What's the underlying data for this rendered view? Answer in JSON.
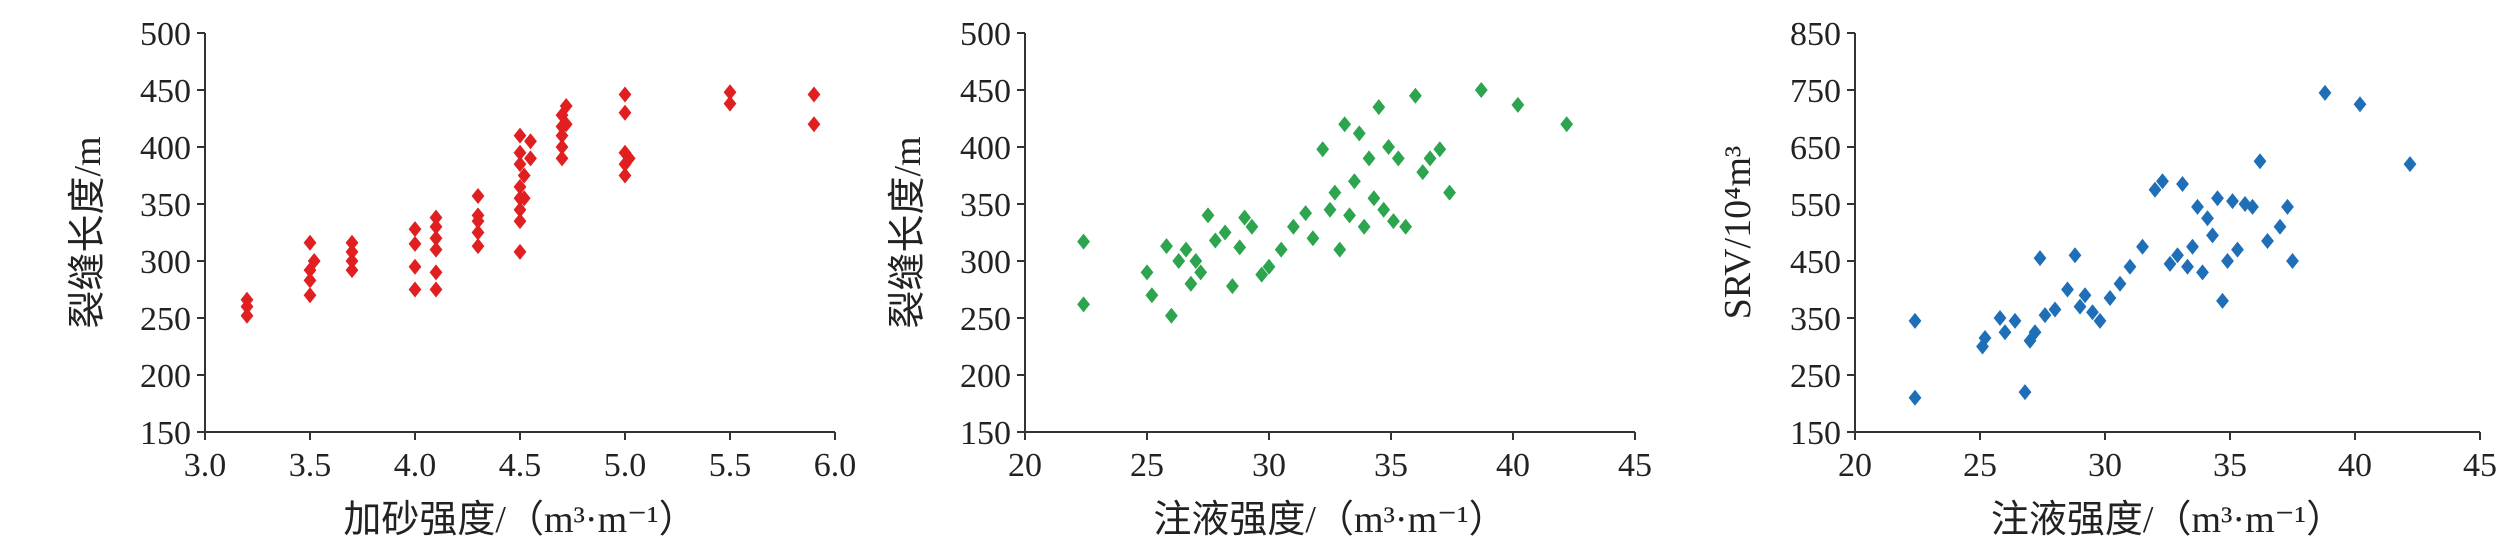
{
  "chart_data": [
    {
      "type": "scatter",
      "title": "",
      "xlabel": "加砂强度/（m³·m⁻¹）",
      "ylabel": "裂缝长度/m",
      "xlim": [
        3.0,
        6.0
      ],
      "ylim": [
        150,
        500
      ],
      "xticks": [
        "3.0",
        "3.5",
        "4.0",
        "4.5",
        "5.0",
        "5.5",
        "6.0"
      ],
      "yticks": [
        "150",
        "200",
        "250",
        "300",
        "350",
        "400",
        "450",
        "500"
      ],
      "grid": false,
      "marker": "diamond",
      "color": "#e02020",
      "x": [
        3.2,
        3.2,
        3.2,
        3.5,
        3.5,
        3.5,
        3.5,
        3.52,
        3.7,
        3.7,
        3.7,
        3.7,
        4.0,
        4.0,
        4.0,
        4.0,
        4.1,
        4.1,
        4.1,
        4.1,
        4.1,
        4.1,
        4.3,
        4.3,
        4.3,
        4.3,
        4.3,
        4.5,
        4.5,
        4.5,
        4.5,
        4.5,
        4.5,
        4.5,
        4.5,
        4.52,
        4.52,
        4.55,
        4.55,
        4.7,
        4.7,
        4.7,
        4.7,
        4.7,
        4.72,
        4.72,
        5.0,
        5.0,
        5.0,
        5.0,
        5.0,
        5.02,
        5.5,
        5.5,
        5.9,
        5.9
      ],
      "y": [
        252,
        260,
        266,
        270,
        283,
        292,
        316,
        300,
        292,
        300,
        308,
        316,
        275,
        295,
        315,
        328,
        275,
        290,
        310,
        320,
        330,
        338,
        313,
        325,
        335,
        340,
        357,
        308,
        335,
        345,
        355,
        365,
        385,
        395,
        410,
        355,
        375,
        390,
        405,
        390,
        400,
        410,
        418,
        428,
        436,
        420,
        375,
        385,
        395,
        430,
        446,
        390,
        438,
        448,
        420,
        446
      ]
    },
    {
      "type": "scatter",
      "title": "",
      "xlabel": "注液强度/（m³·m⁻¹）",
      "ylabel": "裂缝长度/m",
      "xlim": [
        20,
        45
      ],
      "ylim": [
        150,
        500
      ],
      "xticks": [
        "20",
        "25",
        "30",
        "35",
        "40",
        "45"
      ],
      "yticks": [
        "150",
        "200",
        "250",
        "300",
        "350",
        "400",
        "450",
        "500"
      ],
      "grid": false,
      "marker": "diamond",
      "color": "#2da44e",
      "x": [
        22.4,
        22.4,
        25.0,
        25.2,
        25.8,
        26.0,
        26.3,
        26.6,
        26.8,
        27.0,
        27.2,
        27.5,
        27.8,
        28.2,
        28.5,
        28.8,
        29.0,
        29.3,
        29.7,
        30.0,
        30.5,
        31.0,
        31.5,
        31.8,
        32.2,
        32.5,
        32.7,
        32.9,
        33.1,
        33.3,
        33.5,
        33.7,
        33.9,
        34.1,
        34.3,
        34.5,
        34.7,
        34.9,
        35.1,
        35.3,
        35.6,
        36.0,
        36.3,
        36.6,
        37.0,
        37.4,
        38.7,
        40.2,
        42.2
      ],
      "y": [
        262,
        317,
        290,
        270,
        313,
        252,
        300,
        310,
        280,
        300,
        290,
        340,
        318,
        325,
        278,
        312,
        338,
        330,
        288,
        295,
        310,
        330,
        342,
        320,
        398,
        345,
        360,
        310,
        420,
        340,
        370,
        412,
        330,
        390,
        355,
        435,
        345,
        400,
        335,
        390,
        330,
        445,
        378,
        390,
        398,
        360,
        450,
        437,
        420
      ]
    },
    {
      "type": "scatter",
      "title": "",
      "xlabel": "注液强度/（m³·m⁻¹）",
      "ylabel": "SRV/10⁴m³",
      "xlim": [
        20,
        45
      ],
      "ylim": [
        150,
        850
      ],
      "xticks": [
        "20",
        "25",
        "30",
        "35",
        "40",
        "45"
      ],
      "yticks": [
        "150",
        "250",
        "350",
        "450",
        "550",
        "650",
        "750",
        "850"
      ],
      "grid": false,
      "marker": "diamond",
      "color": "#1f6fb8",
      "x": [
        22.4,
        22.4,
        25.1,
        25.2,
        25.8,
        26.0,
        26.4,
        26.8,
        27.0,
        27.2,
        27.4,
        27.6,
        28.0,
        28.5,
        28.8,
        29.0,
        29.2,
        29.5,
        29.8,
        30.2,
        30.6,
        31.0,
        31.5,
        32.0,
        32.3,
        32.6,
        32.9,
        33.1,
        33.3,
        33.5,
        33.7,
        33.9,
        34.1,
        34.3,
        34.5,
        34.7,
        34.9,
        35.1,
        35.3,
        35.6,
        35.9,
        36.2,
        36.5,
        37.0,
        37.3,
        37.5,
        38.8,
        40.2,
        42.2
      ],
      "y": [
        210,
        345,
        300,
        315,
        350,
        325,
        345,
        220,
        310,
        325,
        455,
        355,
        365,
        400,
        460,
        370,
        390,
        360,
        345,
        385,
        410,
        440,
        475,
        575,
        590,
        445,
        460,
        585,
        440,
        475,
        545,
        430,
        525,
        495,
        560,
        380,
        450,
        555,
        470,
        550,
        545,
        625,
        485,
        510,
        545,
        450,
        745,
        725,
        620
      ]
    }
  ]
}
